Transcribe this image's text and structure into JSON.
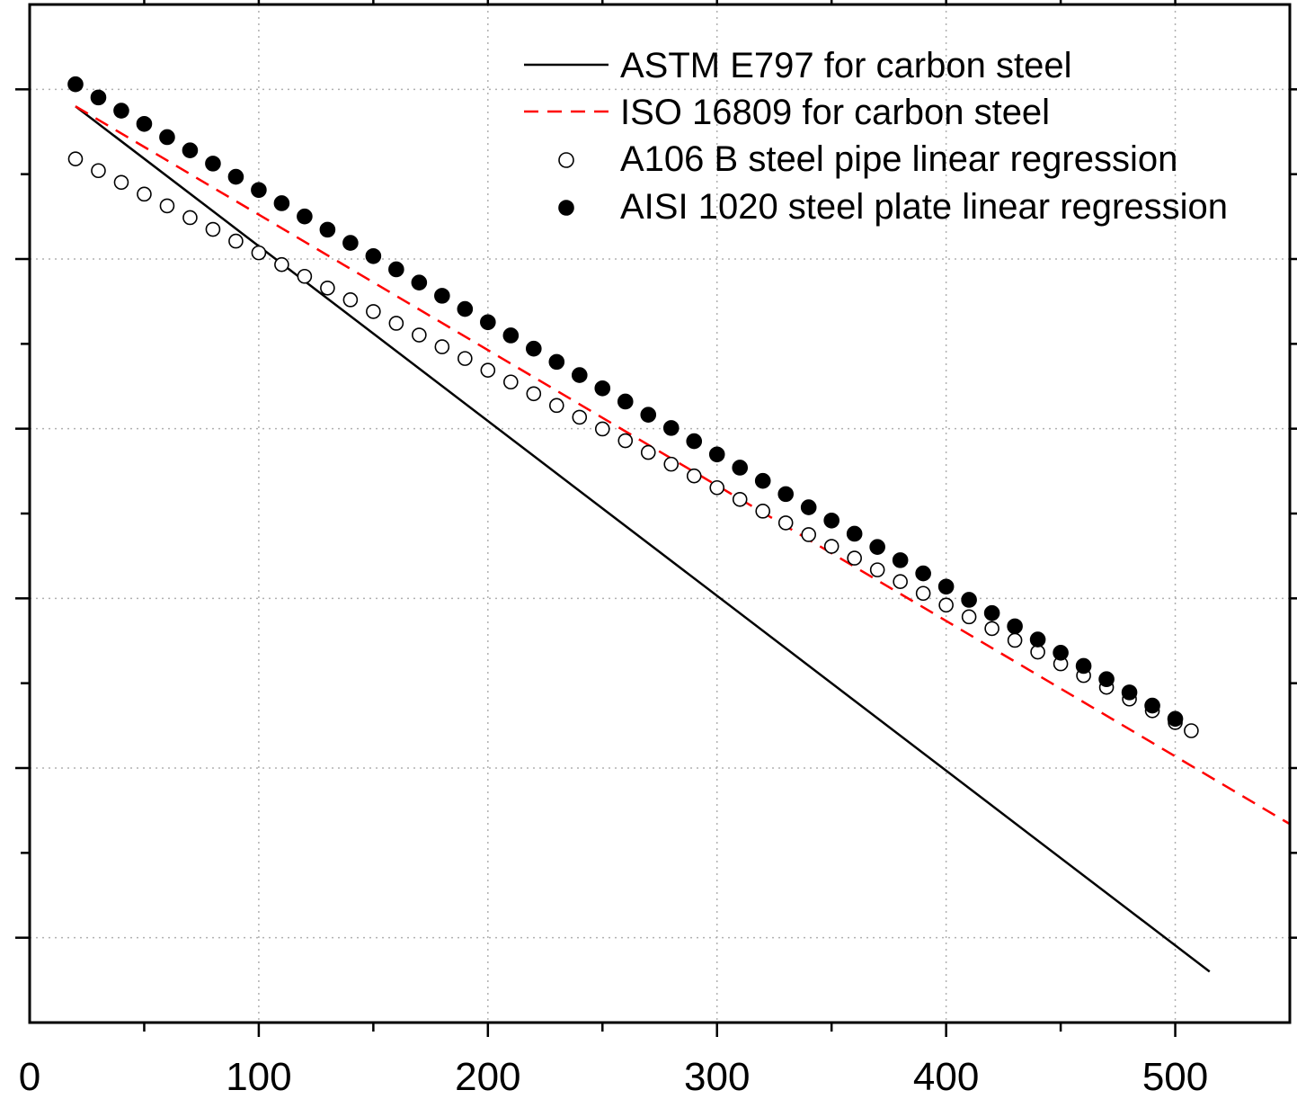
{
  "chart_data": {
    "type": "scatter",
    "xlim": [
      0,
      550
    ],
    "ylim": [
      0,
      600
    ],
    "x_ticks": [
      0,
      100,
      200,
      300,
      400,
      500
    ],
    "x_tick_labels": [
      "0",
      "100",
      "200",
      "300",
      "400",
      "500"
    ],
    "y_major_ticks": [
      50,
      150,
      250,
      350,
      450,
      550
    ],
    "grid": true,
    "legend_position": "top-right",
    "series": [
      {
        "name": "ASTM E797 for carbon steel",
        "kind": "line",
        "style": "solid",
        "color": "#000000",
        "x": [
          20,
          515
        ],
        "y": [
          540,
          30
        ]
      },
      {
        "name": "ISO 16809 for carbon steel",
        "kind": "line",
        "style": "dashed",
        "color": "#ff0000",
        "x": [
          20,
          550
        ],
        "y": [
          540,
          117
        ]
      },
      {
        "name": "A106 B steel pipe linear regression",
        "kind": "scatter",
        "marker": "open-circle",
        "color": "#000000",
        "x_start": 20,
        "x_step": 10,
        "x_end": 507,
        "y_at_x_start": 509,
        "y_at_x_end": 172
      },
      {
        "name": "AISI 1020 steel plate linear regression",
        "kind": "scatter",
        "marker": "filled-circle",
        "color": "#000000",
        "x_start": 20,
        "x_step": 10,
        "x_end": 500,
        "y_at_x_start": 553,
        "y_at_x_end": 179
      }
    ]
  }
}
